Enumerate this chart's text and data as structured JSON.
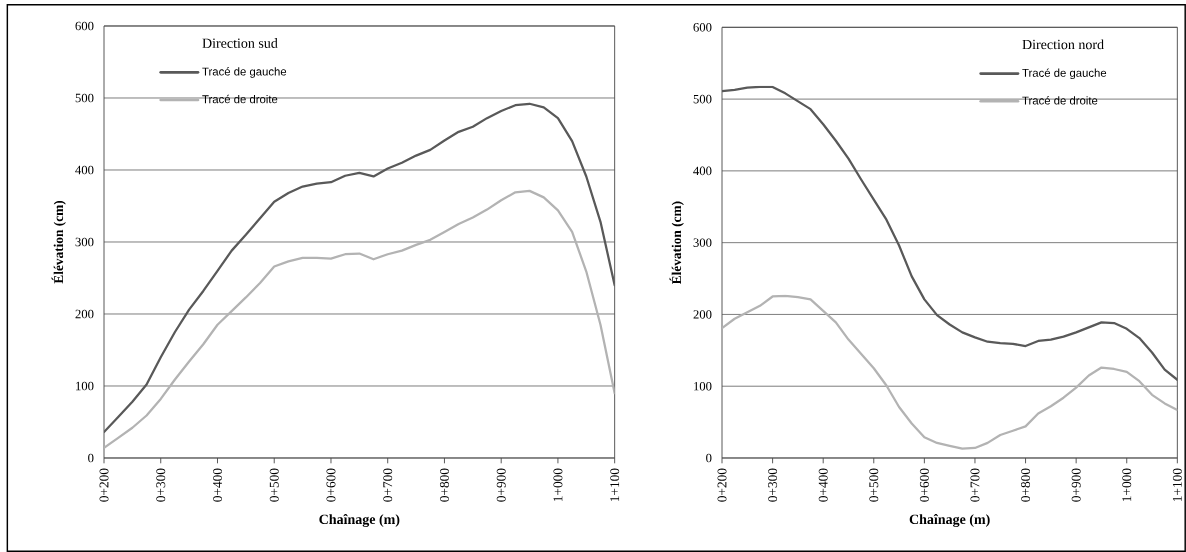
{
  "chart_data": [
    {
      "type": "line",
      "legend_title": "Direction sud",
      "xlabel": "Chaînage (m)",
      "ylabel": "Élévation (cm)",
      "legend": "top left",
      "grid": "y",
      "categories": [
        "0+200",
        null,
        null,
        null,
        "0+300",
        null,
        null,
        null,
        "0+400",
        null,
        null,
        null,
        "0+500",
        null,
        null,
        null,
        "0+600",
        null,
        null,
        null,
        "0+700",
        null,
        null,
        null,
        "0+800",
        null,
        null,
        null,
        "0+900",
        null,
        null,
        null,
        "1+000",
        null,
        null,
        null,
        "1+100"
      ],
      "ylim": [
        0,
        600
      ],
      "yticks": [
        0,
        100,
        200,
        300,
        400,
        500,
        600
      ],
      "series": [
        {
          "name": "Tracé de gauche",
          "color": "#595959",
          "values": [
            36,
            57,
            78,
            102,
            140,
            175,
            206,
            232,
            260,
            288,
            310,
            333,
            356,
            368,
            377,
            381,
            383,
            392,
            396,
            391,
            402,
            410,
            420,
            428,
            441,
            453,
            460,
            472,
            482,
            490,
            492,
            487,
            472,
            440,
            391,
            328,
            240
          ]
        },
        {
          "name": "Tracé de droite",
          "color": "#b3b3b3",
          "values": [
            14,
            28,
            42,
            59,
            82,
            109,
            134,
            158,
            185,
            204,
            223,
            243,
            266,
            273,
            278,
            278,
            277,
            283,
            284,
            276,
            283,
            288,
            296,
            303,
            314,
            325,
            334,
            345,
            358,
            369,
            371,
            362,
            344,
            314,
            259,
            185,
            90
          ]
        }
      ]
    },
    {
      "type": "line",
      "legend_title": "Direction nord",
      "xlabel": "Chaînage (m)",
      "ylabel": "Élévation (cm)",
      "legend": "top right",
      "grid": "y",
      "categories": [
        "0+200",
        null,
        null,
        null,
        "0+300",
        null,
        null,
        null,
        "0+400",
        null,
        null,
        null,
        "0+500",
        null,
        null,
        null,
        "0+600",
        null,
        null,
        null,
        "0+700",
        null,
        null,
        null,
        "0+800",
        null,
        null,
        null,
        "0+900",
        null,
        null,
        null,
        "1+000",
        null,
        null,
        null,
        "1+100"
      ],
      "ylim": [
        0,
        600
      ],
      "yticks": [
        0,
        100,
        200,
        300,
        400,
        500,
        600
      ],
      "series": [
        {
          "name": "Tracé de gauche",
          "color": "#595959",
          "values": [
            511,
            513,
            516,
            517,
            517,
            508,
            497,
            486,
            465,
            442,
            417,
            388,
            360,
            332,
            296,
            253,
            221,
            199,
            186,
            175,
            168,
            162,
            160,
            159,
            156,
            163,
            165,
            169,
            175,
            182,
            189,
            188,
            180,
            167,
            147,
            123,
            109
          ]
        },
        {
          "name": "Tracé de droite",
          "color": "#b3b3b3",
          "values": [
            181,
            194,
            203,
            212,
            225,
            226,
            224,
            221,
            205,
            189,
            165,
            145,
            125,
            101,
            71,
            48,
            29,
            21,
            17,
            13,
            14,
            21,
            32,
            38,
            44,
            62,
            72,
            84,
            98,
            115,
            126,
            124,
            120,
            107,
            88,
            76,
            67
          ]
        }
      ]
    }
  ]
}
